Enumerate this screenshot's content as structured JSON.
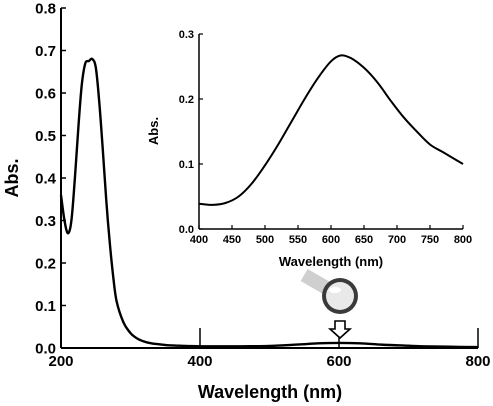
{
  "colors": {
    "line": "#000000",
    "axis": "#000000",
    "background": "#ffffff"
  },
  "chart_data": [
    {
      "type": "line",
      "title": "",
      "xlabel": "Wavelength (nm)",
      "ylabel": "Abs.",
      "xlim": [
        200,
        800
      ],
      "ylim": [
        0,
        0.8
      ],
      "xticks": [
        "200",
        "400",
        "600",
        "800"
      ],
      "yticks": [
        "0.0",
        "0.1",
        "0.2",
        "0.3",
        "0.4",
        "0.5",
        "0.6",
        "0.7",
        "0.8"
      ],
      "grid": false,
      "series": [
        {
          "x": [
            200,
            205,
            210,
            215,
            220,
            225,
            230,
            235,
            240,
            245,
            250,
            255,
            260,
            265,
            270,
            275,
            280,
            290,
            300,
            310,
            320,
            330,
            340,
            350,
            360,
            380,
            400,
            430,
            460,
            500,
            540,
            570,
            600,
            630,
            660,
            690,
            720,
            760,
            800
          ],
          "y": [
            0.36,
            0.3,
            0.27,
            0.3,
            0.4,
            0.52,
            0.62,
            0.67,
            0.675,
            0.68,
            0.66,
            0.58,
            0.47,
            0.35,
            0.25,
            0.17,
            0.11,
            0.06,
            0.035,
            0.022,
            0.015,
            0.011,
            0.009,
            0.007,
            0.006,
            0.005,
            0.004,
            0.004,
            0.004,
            0.005,
            0.008,
            0.011,
            0.012,
            0.011,
            0.008,
            0.006,
            0.004,
            0.003,
            0.002
          ]
        }
      ],
      "annotations": [
        {
          "kind": "icon",
          "name": "vial-photo-icon",
          "x": 600,
          "y": 0.09
        },
        {
          "kind": "arrow",
          "name": "down-arrow-icon",
          "x": 600,
          "y": 0.05
        }
      ]
    },
    {
      "type": "line",
      "title": "",
      "xlabel": "Wavelength (nm)",
      "ylabel": "Abs.",
      "xlim": [
        400,
        800
      ],
      "ylim": [
        0,
        0.3
      ],
      "xticks": [
        "400",
        "450",
        "500",
        "550",
        "600",
        "650",
        "700",
        "750",
        "800"
      ],
      "yticks": [
        "0.0",
        "0.1",
        "0.2",
        "0.3"
      ],
      "grid": false,
      "series": [
        {
          "x": [
            400,
            420,
            440,
            460,
            480,
            500,
            520,
            540,
            560,
            580,
            600,
            615,
            630,
            650,
            670,
            690,
            710,
            730,
            750,
            770,
            800
          ],
          "y": [
            0.039,
            0.037,
            0.04,
            0.05,
            0.07,
            0.098,
            0.13,
            0.165,
            0.2,
            0.232,
            0.258,
            0.267,
            0.263,
            0.248,
            0.226,
            0.198,
            0.172,
            0.15,
            0.13,
            0.118,
            0.1
          ]
        }
      ]
    }
  ]
}
